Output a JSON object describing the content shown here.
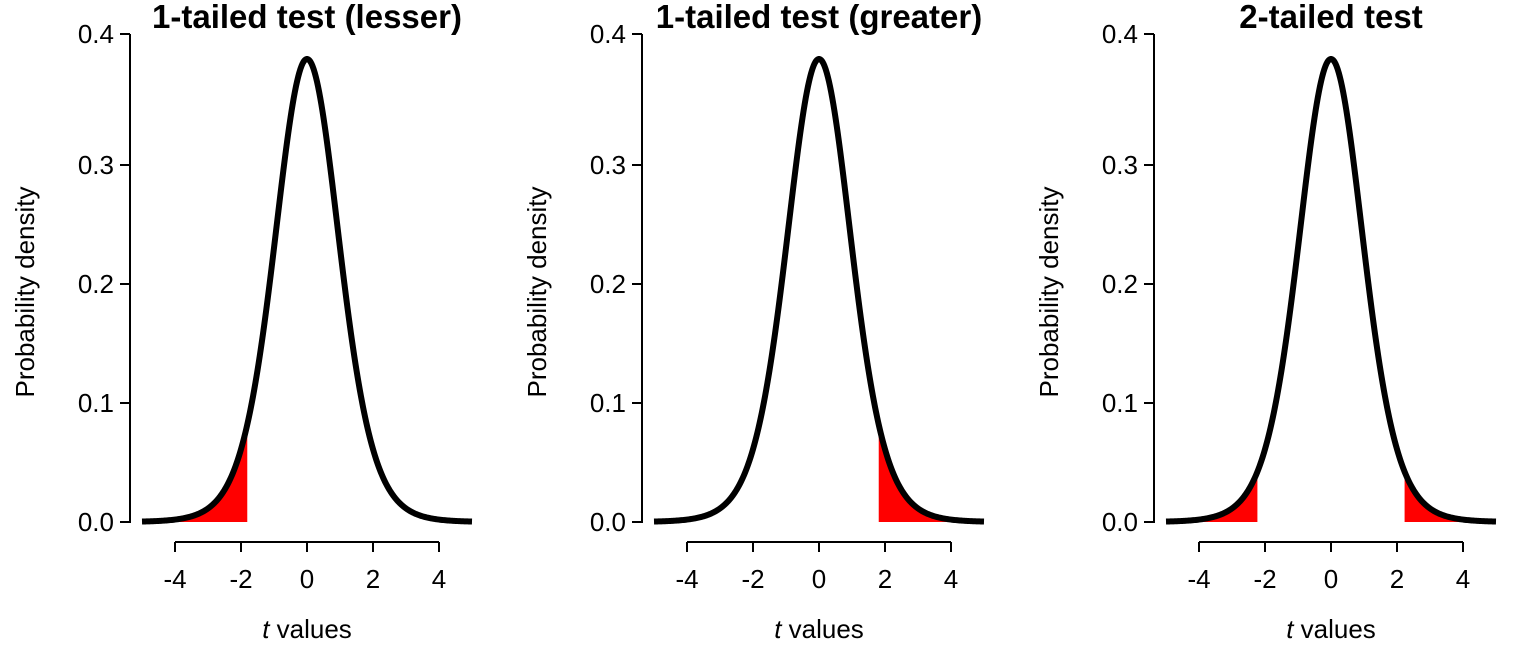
{
  "chart_data": [
    {
      "type": "line",
      "title": "1-tailed test (lesser)",
      "xlabel_italic": "t",
      "xlabel_rest": " values",
      "ylabel": "Probability density",
      "xlim": [
        -5,
        5
      ],
      "ylim": [
        0,
        0.4
      ],
      "xticks": [
        "-4",
        "-2",
        "0",
        "2",
        "4"
      ],
      "yticks": [
        "0.0",
        "0.1",
        "0.2",
        "0.3",
        "0.4"
      ],
      "distribution": "Student t",
      "df": 10,
      "shaded_regions": [
        [
          -5,
          -1.81
        ]
      ],
      "shade_color": "#ff0000"
    },
    {
      "type": "line",
      "title": "1-tailed test (greater)",
      "xlabel_italic": "t",
      "xlabel_rest": " values",
      "ylabel": "Probability density",
      "xlim": [
        -5,
        5
      ],
      "ylim": [
        0,
        0.4
      ],
      "xticks": [
        "-4",
        "-2",
        "0",
        "2",
        "4"
      ],
      "yticks": [
        "0.0",
        "0.1",
        "0.2",
        "0.3",
        "0.4"
      ],
      "distribution": "Student t",
      "df": 10,
      "shaded_regions": [
        [
          1.81,
          5
        ]
      ],
      "shade_color": "#ff0000"
    },
    {
      "type": "line",
      "title": "2-tailed test",
      "xlabel_italic": "t",
      "xlabel_rest": " values",
      "ylabel": "Probability density",
      "xlim": [
        -5,
        5
      ],
      "ylim": [
        0,
        0.4
      ],
      "xticks": [
        "-4",
        "-2",
        "0",
        "2",
        "4"
      ],
      "yticks": [
        "0.0",
        "0.1",
        "0.2",
        "0.3",
        "0.4"
      ],
      "distribution": "Student t",
      "df": 10,
      "shaded_regions": [
        [
          -5,
          -2.23
        ],
        [
          2.23,
          5
        ]
      ],
      "shade_color": "#ff0000"
    }
  ]
}
